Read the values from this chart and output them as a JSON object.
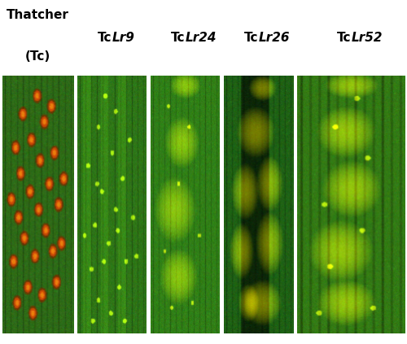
{
  "bg_color": "#ffffff",
  "figure_width": 5.0,
  "figure_height": 4.23,
  "dpi": 100,
  "label_fontsize": 11,
  "panels": [
    {
      "label_top": "Thatcher",
      "label_bot": "(Tc)",
      "type": "tc"
    },
    {
      "label": "TcLr9",
      "type": "lr9"
    },
    {
      "label": "TcLr24",
      "type": "lr24"
    },
    {
      "label": "TcLr26",
      "type": "lr26"
    },
    {
      "label": "TcLr52",
      "type": "lr52"
    }
  ]
}
